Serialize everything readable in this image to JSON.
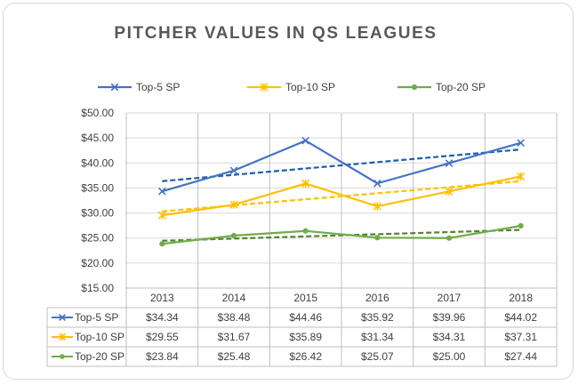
{
  "chart_data": {
    "type": "line",
    "title": "PITCHER VALUES IN QS LEAGUES",
    "categories": [
      "2013",
      "2014",
      "2015",
      "2016",
      "2017",
      "2018"
    ],
    "ylim": [
      15,
      50
    ],
    "ytick_step": 5,
    "ytick_labels": [
      "$15.00",
      "$20.00",
      "$25.00",
      "$30.00",
      "$35.00",
      "$40.00",
      "$45.00",
      "$50.00"
    ],
    "grid": true,
    "trendlines": true,
    "legend_position": "top",
    "data_table": true,
    "series": [
      {
        "name": "Top-5 SP",
        "color": "#4472c4",
        "trend_color": "#1f5fa8",
        "marker": "x",
        "values": [
          34.34,
          38.48,
          44.46,
          35.92,
          39.96,
          44.02
        ],
        "labels": [
          "$34.34",
          "$38.48",
          "$44.46",
          "$35.92",
          "$39.96",
          "$44.02"
        ]
      },
      {
        "name": "Top-10 SP",
        "color": "#ffc000",
        "trend_color": "#ffc000",
        "marker": "star",
        "values": [
          29.55,
          31.67,
          35.89,
          31.34,
          34.31,
          37.31
        ],
        "labels": [
          "$29.55",
          "$31.67",
          "$35.89",
          "$31.34",
          "$34.31",
          "$37.31"
        ]
      },
      {
        "name": "Top-20 SP",
        "color": "#70ad47",
        "trend_color": "#548235",
        "marker": "circle",
        "values": [
          23.84,
          25.48,
          26.42,
          25.07,
          25.0,
          27.44
        ],
        "labels": [
          "$23.84",
          "$25.48",
          "$26.42",
          "$25.07",
          "$25.00",
          "$27.44"
        ]
      }
    ]
  }
}
